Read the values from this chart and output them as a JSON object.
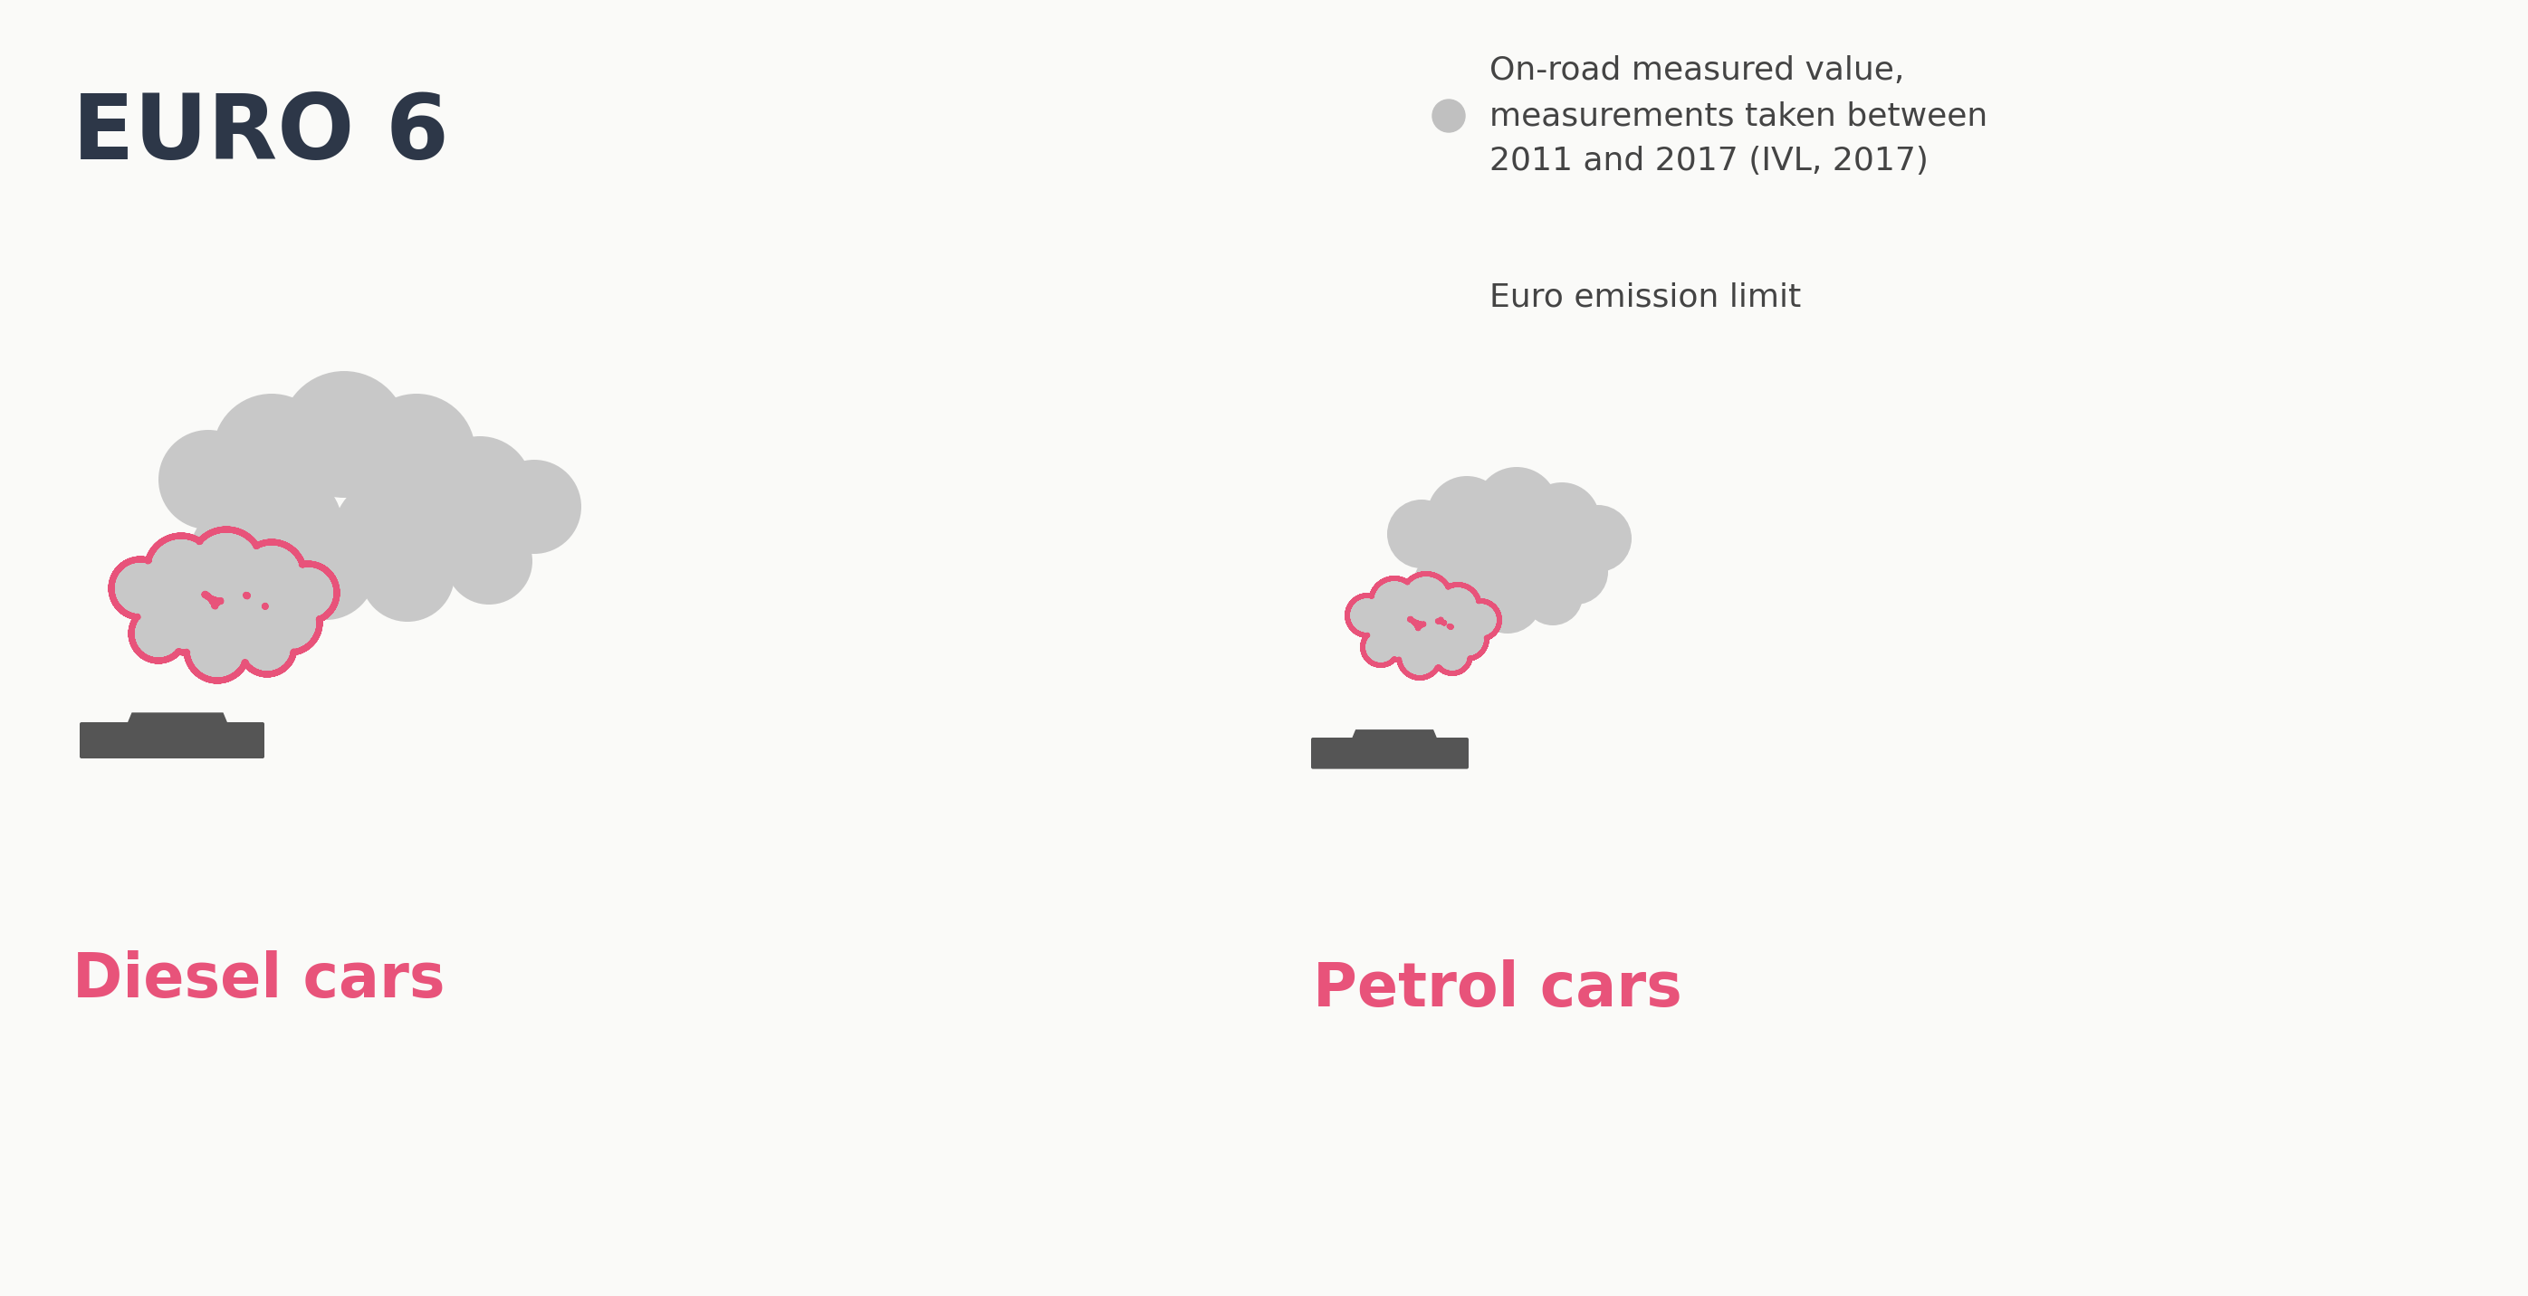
{
  "title": "EURO 6",
  "title_color": "#2d3748",
  "bg_color": "#fafaf8",
  "legend_dot_color": "#c0c0c0",
  "legend_circle_color": "#e8537a",
  "legend_text1": "On-road measured value,\nmeasurements taken between\n2011 and 2017 (IVL, 2017)",
  "legend_text2": "Euro emission limit",
  "legend_text_color": "#444444",
  "diesel_label": "Diesel cars",
  "petrol_label": "Petrol cars",
  "label_color": "#e8537a",
  "smoke_gray": "#c8c8c8",
  "outline_color": "#e8537a",
  "car_color": "#555555"
}
